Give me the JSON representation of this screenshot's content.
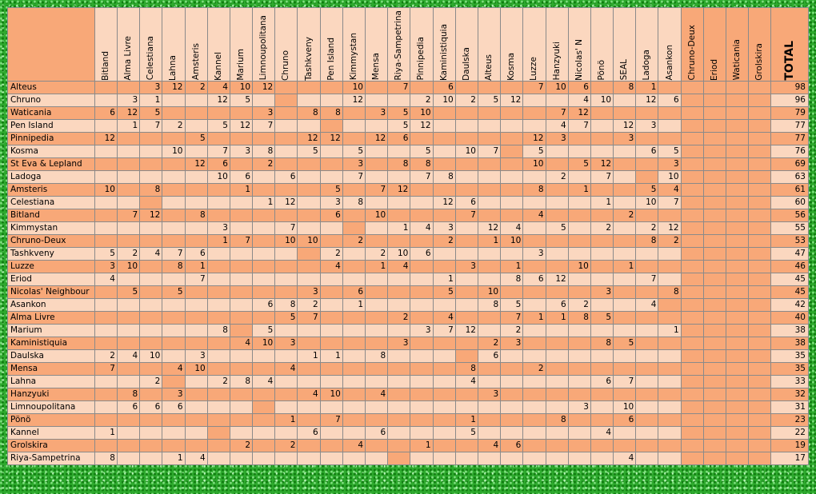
{
  "table": {
    "columns": [
      "Bitland",
      "Alma Livre",
      "Celestiana",
      "Lahna",
      "Amsteris",
      "Kannel",
      "Marium",
      "Limnoupolitana",
      "Chruno",
      "Tashkveny",
      "Pen Island",
      "Kimmystan",
      "Mensa",
      "Riya-Sampetrina",
      "Pinnipedia",
      "Kaministiquia",
      "Daulska",
      "Alteus",
      "Kosma",
      "Luzze",
      "Hanzyuki",
      "Nicolas' N",
      "Pönö",
      "SEAL",
      "Ladoga",
      "Asankon",
      "Chruno-Deux",
      "Eriod",
      "Waticania",
      "Grolskira"
    ],
    "total_label": "TOTAL",
    "rows": [
      {
        "country": "Alteus",
        "scores": [
          "",
          "",
          "3",
          "12",
          "2",
          "4",
          "10",
          "12",
          "",
          "",
          "",
          "10",
          "",
          "7",
          "",
          "6",
          "",
          "",
          "",
          "7",
          "10",
          "6",
          "",
          "8",
          "1",
          "",
          "",
          "",
          "",
          ""
        ],
        "total": "98"
      },
      {
        "country": "Chruno",
        "scores": [
          "",
          "3",
          "1",
          "",
          "",
          "12",
          "5",
          "",
          "",
          "",
          "",
          "12",
          "",
          "",
          "2",
          "10",
          "2",
          "5",
          "12",
          "",
          "",
          "4",
          "10",
          "",
          "12",
          "6",
          "",
          "",
          "",
          ""
        ],
        "total": "96"
      },
      {
        "country": "Waticania",
        "scores": [
          "6",
          "12",
          "5",
          "",
          "",
          "",
          "",
          "3",
          "",
          "8",
          "8",
          "",
          "3",
          "5",
          "10",
          "",
          "",
          "",
          "",
          "",
          "7",
          "12",
          "",
          "",
          "",
          "",
          "",
          "",
          "",
          ""
        ],
        "total": "79"
      },
      {
        "country": "Pen Island",
        "scores": [
          "",
          "1",
          "7",
          "2",
          "",
          "5",
          "12",
          "7",
          "",
          "",
          "",
          "",
          "",
          "5",
          "12",
          "",
          "",
          "",
          "",
          "",
          "4",
          "7",
          "",
          "12",
          "3",
          "",
          "",
          "",
          "",
          ""
        ],
        "total": "77"
      },
      {
        "country": "Pinnipedia",
        "scores": [
          "12",
          "",
          "",
          "",
          "5",
          "",
          "",
          "",
          "",
          "12",
          "12",
          "",
          "12",
          "6",
          "",
          "",
          "",
          "",
          "",
          "12",
          "3",
          "",
          "",
          "3",
          "",
          "",
          "",
          "",
          "",
          ""
        ],
        "total": "77"
      },
      {
        "country": "Kosma",
        "scores": [
          "",
          "",
          "",
          "10",
          "",
          "7",
          "3",
          "8",
          "",
          "5",
          "",
          "5",
          "",
          "",
          "5",
          "",
          "10",
          "7",
          "",
          "5",
          "",
          "",
          "",
          "",
          "6",
          "5",
          "",
          "",
          "",
          ""
        ],
        "total": "76"
      },
      {
        "country": "St Eva & Lepland",
        "scores": [
          "",
          "",
          "",
          "",
          "12",
          "6",
          "",
          "2",
          "",
          "",
          "",
          "3",
          "",
          "8",
          "8",
          "",
          "",
          "",
          "",
          "10",
          "",
          "5",
          "12",
          "",
          "",
          "3",
          "",
          "",
          "",
          ""
        ],
        "total": "69"
      },
      {
        "country": "Ladoga",
        "scores": [
          "",
          "",
          "",
          "",
          "",
          "10",
          "6",
          "",
          "6",
          "",
          "",
          "7",
          "",
          "",
          "7",
          "8",
          "",
          "",
          "",
          "",
          "2",
          "",
          "7",
          "",
          "",
          "10",
          "",
          "",
          "",
          ""
        ],
        "total": "63"
      },
      {
        "country": "Amsteris",
        "scores": [
          "10",
          "",
          "8",
          "",
          "",
          "",
          "1",
          "",
          "",
          "",
          "5",
          "",
          "7",
          "12",
          "",
          "",
          "",
          "",
          "",
          "8",
          "",
          "1",
          "",
          "",
          "5",
          "4",
          "",
          "",
          "",
          ""
        ],
        "total": "61"
      },
      {
        "country": "Celestiana",
        "scores": [
          "",
          "",
          "",
          "",
          "",
          "",
          "",
          "1",
          "12",
          "",
          "3",
          "8",
          "",
          "",
          "",
          "12",
          "6",
          "",
          "",
          "",
          "",
          "",
          "1",
          "",
          "10",
          "7",
          "",
          "",
          "",
          ""
        ],
        "total": "60"
      },
      {
        "country": "Bitland",
        "scores": [
          "",
          "7",
          "12",
          "",
          "8",
          "",
          "",
          "",
          "",
          "",
          "6",
          "",
          "10",
          "",
          "",
          "",
          "7",
          "",
          "",
          "4",
          "",
          "",
          "",
          "2",
          "",
          "",
          "",
          "",
          "",
          ""
        ],
        "total": "56"
      },
      {
        "country": "Kimmystan",
        "scores": [
          "",
          "",
          "",
          "",
          "",
          "3",
          "",
          "",
          "7",
          "",
          "",
          "",
          "",
          "1",
          "4",
          "3",
          "",
          "12",
          "4",
          "",
          "5",
          "",
          "2",
          "",
          "2",
          "12",
          "",
          "",
          "",
          ""
        ],
        "total": "55"
      },
      {
        "country": "Chruno-Deux",
        "scores": [
          "",
          "",
          "",
          "",
          "",
          "1",
          "7",
          "",
          "10",
          "10",
          "",
          "2",
          "",
          "",
          "",
          "2",
          "",
          "1",
          "10",
          "",
          "",
          "",
          "",
          "",
          "8",
          "2",
          "",
          "",
          "",
          ""
        ],
        "total": "53"
      },
      {
        "country": "Tashkveny",
        "scores": [
          "5",
          "2",
          "4",
          "7",
          "6",
          "",
          "",
          "",
          "",
          "",
          "2",
          "",
          "2",
          "10",
          "6",
          "",
          "",
          "",
          "",
          "3",
          "",
          "",
          "",
          "",
          "",
          "",
          "",
          "",
          "",
          ""
        ],
        "total": "47"
      },
      {
        "country": "Luzze",
        "scores": [
          "3",
          "10",
          "",
          "8",
          "1",
          "",
          "",
          "",
          "",
          "",
          "4",
          "",
          "1",
          "4",
          "",
          "",
          "3",
          "",
          "1",
          "",
          "",
          "10",
          "",
          "1",
          "",
          "",
          "",
          "",
          "",
          ""
        ],
        "total": "46"
      },
      {
        "country": "Eriod",
        "scores": [
          "4",
          "",
          "",
          "",
          "7",
          "",
          "",
          "",
          "",
          "",
          "",
          "",
          "",
          "",
          "",
          "1",
          "",
          "",
          "8",
          "6",
          "12",
          "",
          "",
          "",
          "7",
          "",
          "",
          "",
          "",
          ""
        ],
        "total": "45"
      },
      {
        "country": "Nicolas' Neighbour",
        "scores": [
          "",
          "5",
          "",
          "5",
          "",
          "",
          "",
          "",
          "",
          "3",
          "",
          "6",
          "",
          "",
          "",
          "5",
          "",
          "10",
          "",
          "",
          "",
          "",
          "3",
          "",
          "",
          "8",
          "",
          "",
          "",
          ""
        ],
        "total": "45"
      },
      {
        "country": "Asankon",
        "scores": [
          "",
          "",
          "",
          "",
          "",
          "",
          "",
          "6",
          "8",
          "2",
          "",
          "1",
          "",
          "",
          "",
          "",
          "",
          "8",
          "5",
          "",
          "6",
          "2",
          "",
          "",
          "4",
          "",
          "",
          "",
          "",
          ""
        ],
        "total": "42"
      },
      {
        "country": "Alma Livre",
        "scores": [
          "",
          "",
          "",
          "",
          "",
          "",
          "",
          "",
          "5",
          "7",
          "",
          "",
          "",
          "2",
          "",
          "4",
          "",
          "",
          "7",
          "1",
          "1",
          "8",
          "5",
          "",
          "",
          "",
          "",
          "",
          "",
          ""
        ],
        "total": "40"
      },
      {
        "country": "Marium",
        "scores": [
          "",
          "",
          "",
          "",
          "",
          "8",
          "",
          "5",
          "",
          "",
          "",
          "",
          "",
          "",
          "3",
          "7",
          "12",
          "",
          "2",
          "",
          "",
          "",
          "",
          "",
          "",
          "1",
          "",
          "",
          "",
          ""
        ],
        "total": "38"
      },
      {
        "country": "Kaministiquia",
        "scores": [
          "",
          "",
          "",
          "",
          "",
          "",
          "4",
          "10",
          "3",
          "",
          "",
          "",
          "",
          "3",
          "",
          "",
          "",
          "2",
          "3",
          "",
          "",
          "",
          "8",
          "5",
          "",
          "",
          "",
          "",
          "",
          ""
        ],
        "total": "38"
      },
      {
        "country": "Daulska",
        "scores": [
          "2",
          "4",
          "10",
          "",
          "3",
          "",
          "",
          "",
          "",
          "1",
          "1",
          "",
          "8",
          "",
          "",
          "",
          "",
          "6",
          "",
          "",
          "",
          "",
          "",
          "",
          "",
          "",
          "",
          "",
          "",
          ""
        ],
        "total": "35"
      },
      {
        "country": "Mensa",
        "scores": [
          "7",
          "",
          "",
          "4",
          "10",
          "",
          "",
          "",
          "4",
          "",
          "",
          "",
          "",
          "",
          "",
          "",
          "8",
          "",
          "",
          "2",
          "",
          "",
          "",
          "",
          "",
          "",
          "",
          "",
          "",
          ""
        ],
        "total": "35"
      },
      {
        "country": "Lahna",
        "scores": [
          "",
          "",
          "2",
          "",
          "",
          "2",
          "8",
          "4",
          "",
          "",
          "",
          "",
          "",
          "",
          "",
          "",
          "4",
          "",
          "",
          "",
          "",
          "",
          "6",
          "7",
          "",
          "",
          "",
          "",
          "",
          ""
        ],
        "total": "33"
      },
      {
        "country": "Hanzyuki",
        "scores": [
          "",
          "8",
          "",
          "3",
          "",
          "",
          "",
          "",
          "",
          "4",
          "10",
          "",
          "4",
          "",
          "",
          "",
          "",
          "3",
          "",
          "",
          "",
          "",
          "",
          "",
          "",
          "",
          "",
          "",
          "",
          ""
        ],
        "total": "32"
      },
      {
        "country": "Limnoupolitana",
        "scores": [
          "",
          "6",
          "6",
          "6",
          "",
          "",
          "",
          "",
          "",
          "",
          "",
          "",
          "",
          "",
          "",
          "",
          "",
          "",
          "",
          "",
          "",
          "3",
          "",
          "10",
          "",
          "",
          "",
          "",
          "",
          ""
        ],
        "total": "31"
      },
      {
        "country": "Pönö",
        "scores": [
          "",
          "",
          "",
          "",
          "",
          "",
          "",
          "",
          "1",
          "",
          "7",
          "",
          "",
          "",
          "",
          "",
          "1",
          "",
          "",
          "",
          "8",
          "",
          "",
          "6",
          "",
          "",
          "",
          "",
          "",
          ""
        ],
        "total": "23"
      },
      {
        "country": "Kannel",
        "scores": [
          "1",
          "",
          "",
          "",
          "",
          "",
          "",
          "",
          "",
          "6",
          "",
          "",
          "6",
          "",
          "",
          "",
          "5",
          "",
          "",
          "",
          "",
          "",
          "4",
          "",
          "",
          "",
          "",
          "",
          "",
          ""
        ],
        "total": "22"
      },
      {
        "country": "Grolskira",
        "scores": [
          "",
          "",
          "",
          "",
          "",
          "",
          "2",
          "",
          "2",
          "",
          "",
          "4",
          "",
          "",
          "1",
          "",
          "",
          "4",
          "6",
          "",
          "",
          "",
          "",
          "",
          "",
          "",
          "",
          "",
          "",
          ""
        ],
        "total": "19"
      },
      {
        "country": "Riya-Sampetrina",
        "scores": [
          "8",
          "",
          "",
          "1",
          "4",
          "",
          "",
          "",
          "",
          "",
          "",
          "",
          "",
          "",
          "",
          "",
          "",
          "",
          "",
          "",
          "",
          "",
          "",
          "4",
          "",
          "",
          "",
          "",
          "",
          ""
        ],
        "total": "17"
      }
    ]
  }
}
